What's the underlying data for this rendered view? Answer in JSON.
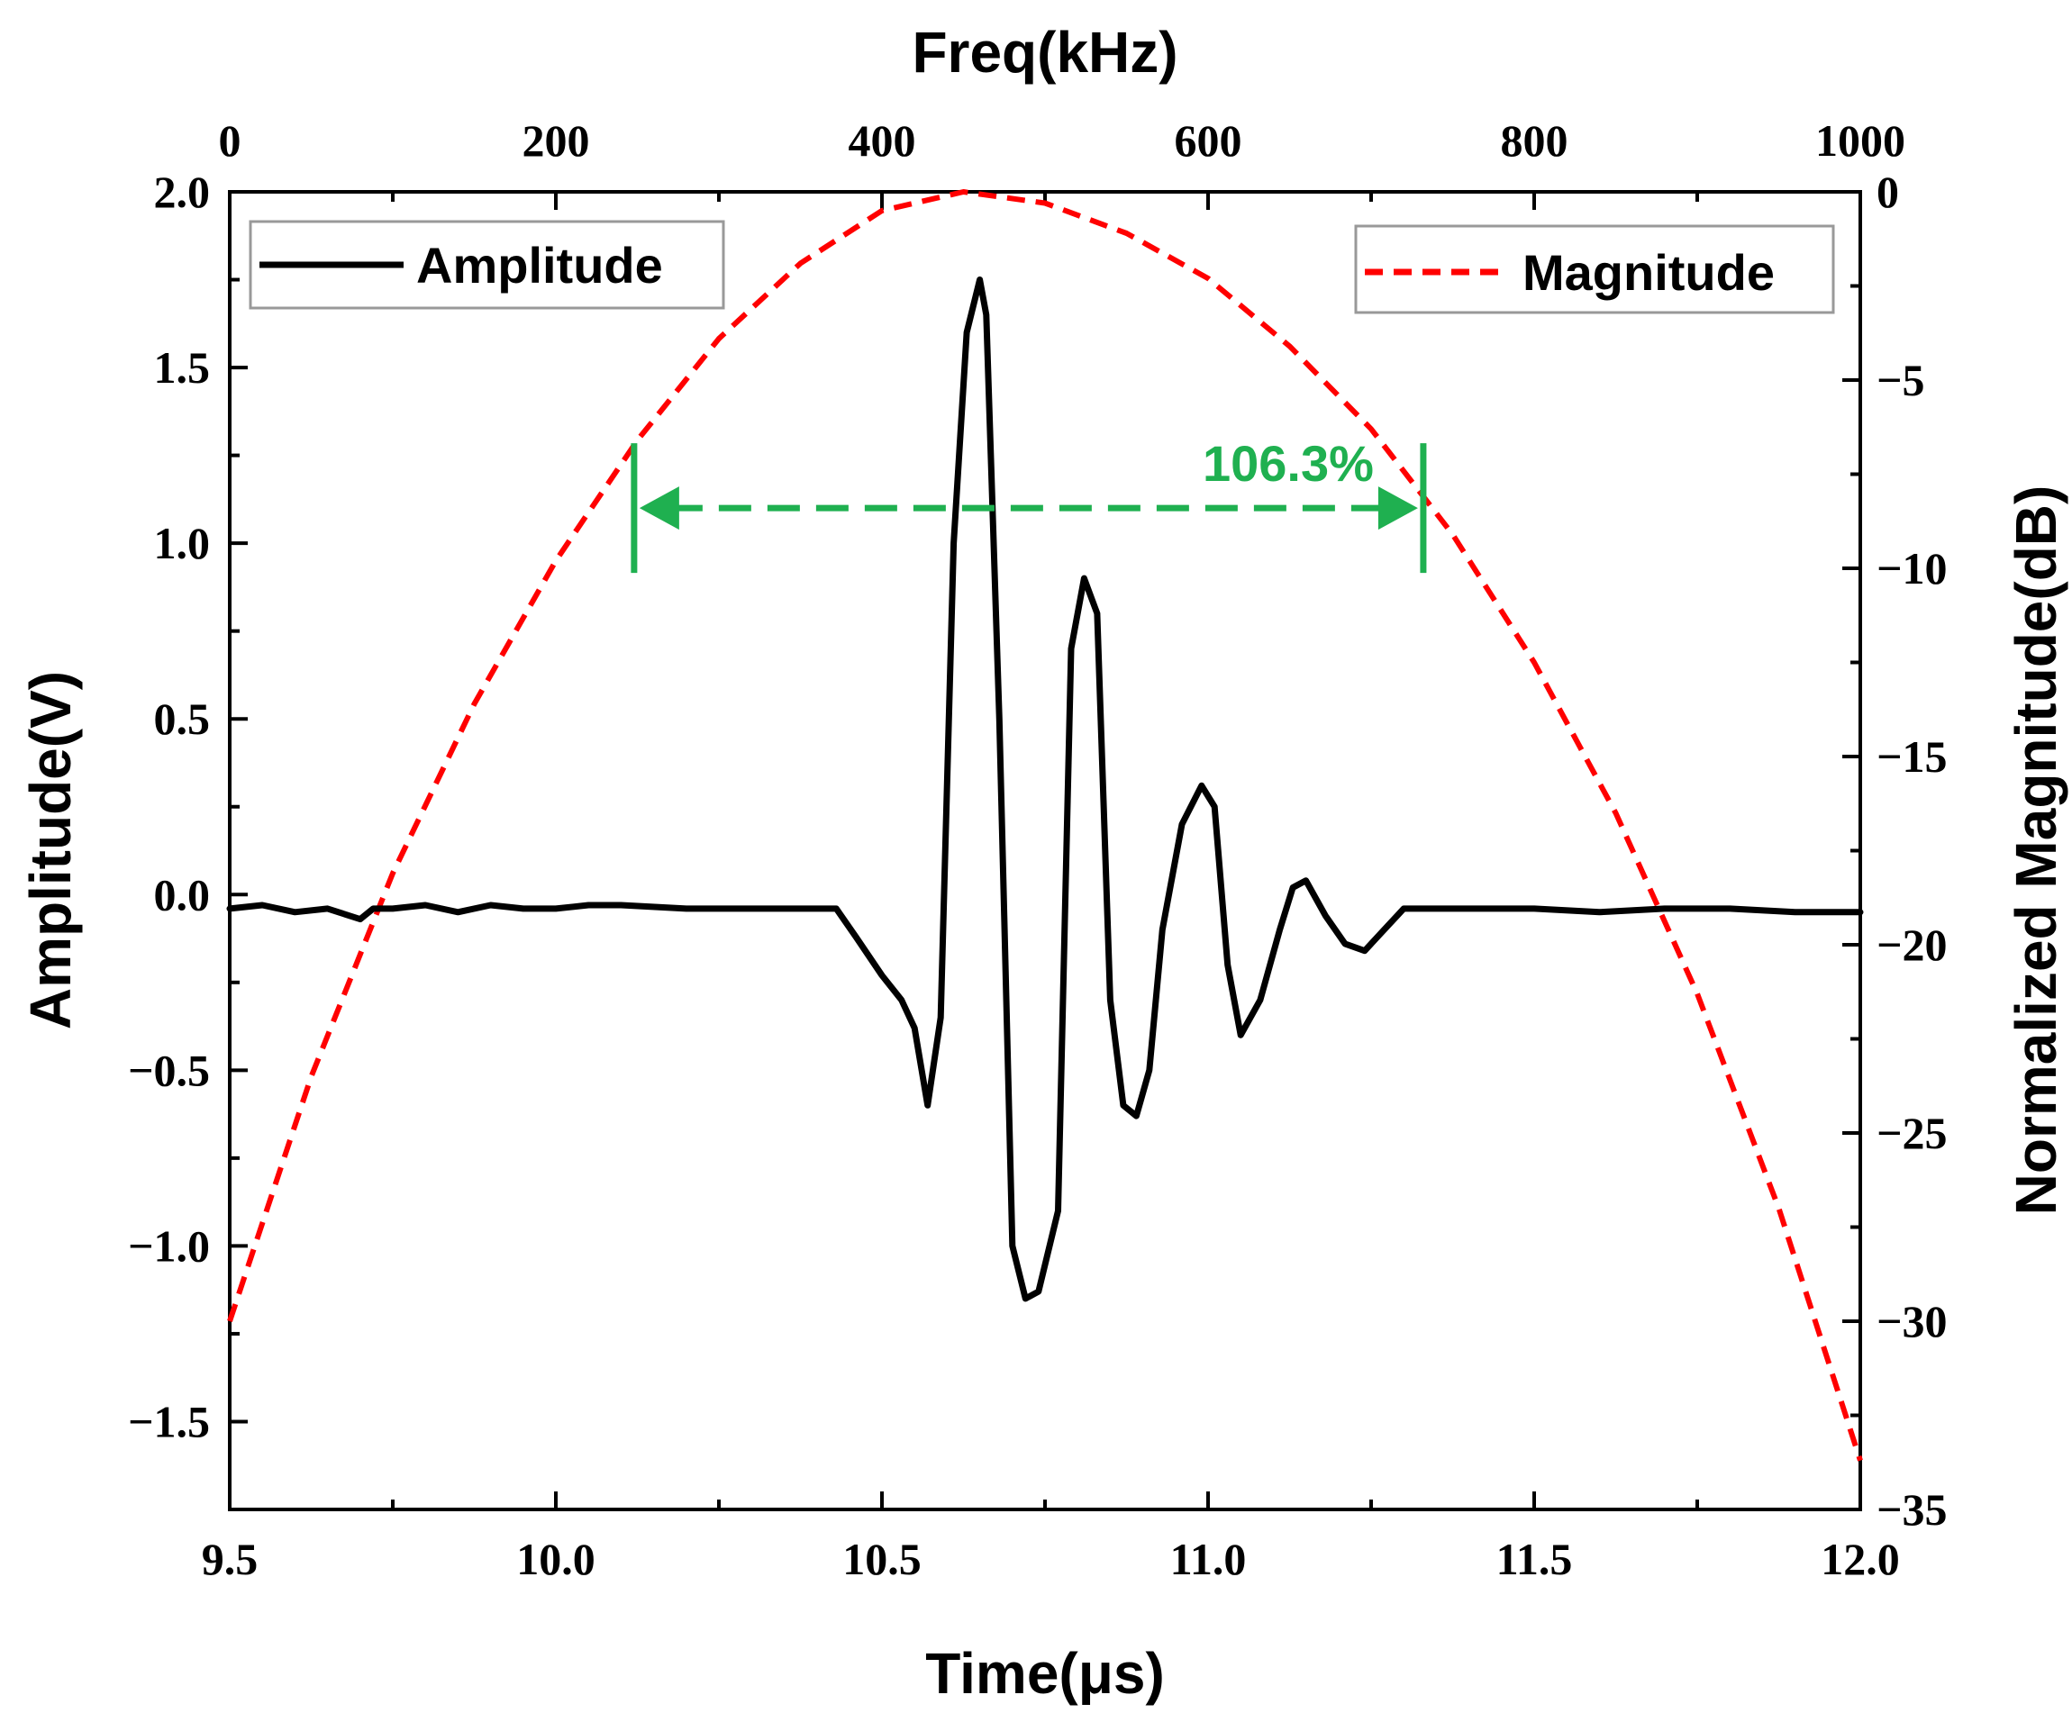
{
  "chart_data": {
    "type": "line",
    "x_axis": {
      "label": "Time(μs)",
      "range": [
        9.5,
        12.0
      ],
      "ticks": [
        "9.5",
        "10.0",
        "10.5",
        "11.0",
        "11.5",
        "12.0"
      ]
    },
    "x2_axis": {
      "label": "Freq(kHz)",
      "range": [
        0,
        1000
      ],
      "ticks": [
        "0",
        "200",
        "400",
        "600",
        "800",
        "1000"
      ]
    },
    "y_axis": {
      "label": "Amplitude(V)",
      "range": [
        -1.75,
        2.0
      ],
      "ticks": [
        "2.0",
        "1.5",
        "1.0",
        "0.5",
        "0.0",
        "−0.5",
        "−1.0",
        "−1.5"
      ]
    },
    "y2_axis": {
      "label": "Normalized Magnitude(dB)",
      "range": [
        -35,
        0
      ],
      "ticks": [
        "0",
        "−5",
        "−10",
        "−15",
        "−20",
        "−25",
        "−30",
        "−35"
      ]
    },
    "series": [
      {
        "name": "Amplitude",
        "axis": "time",
        "color": "#000000",
        "style": "solid",
        "x": [
          9.5,
          9.55,
          9.6,
          9.65,
          9.7,
          9.72,
          9.75,
          9.8,
          9.85,
          9.9,
          9.95,
          10.0,
          10.05,
          10.1,
          10.2,
          10.3,
          10.4,
          10.43,
          10.46,
          10.5,
          10.53,
          10.55,
          10.57,
          10.59,
          10.61,
          10.63,
          10.65,
          10.66,
          10.68,
          10.7,
          10.72,
          10.74,
          10.77,
          10.79,
          10.81,
          10.83,
          10.85,
          10.87,
          10.89,
          10.91,
          10.93,
          10.96,
          10.99,
          11.01,
          11.03,
          11.05,
          11.08,
          11.11,
          11.13,
          11.15,
          11.18,
          11.21,
          11.24,
          11.27,
          11.3,
          11.35,
          11.4,
          11.5,
          11.6,
          11.7,
          11.8,
          11.9,
          12.0
        ],
        "y": [
          -0.04,
          -0.03,
          -0.05,
          -0.04,
          -0.07,
          -0.04,
          -0.04,
          -0.03,
          -0.05,
          -0.03,
          -0.04,
          -0.04,
          -0.03,
          -0.03,
          -0.04,
          -0.04,
          -0.04,
          -0.04,
          -0.12,
          -0.23,
          -0.3,
          -0.38,
          -0.6,
          -0.35,
          1.0,
          1.6,
          1.75,
          1.65,
          0.5,
          -1.0,
          -1.15,
          -1.13,
          -0.9,
          0.7,
          0.9,
          0.8,
          -0.3,
          -0.6,
          -0.63,
          -0.5,
          -0.1,
          0.2,
          0.31,
          0.25,
          -0.2,
          -0.4,
          -0.3,
          -0.1,
          0.02,
          0.04,
          -0.06,
          -0.14,
          -0.16,
          -0.1,
          -0.04,
          -0.04,
          -0.04,
          -0.04,
          -0.05,
          -0.04,
          -0.04,
          -0.05,
          -0.05
        ]
      },
      {
        "name": "Magnitude",
        "axis": "freq",
        "color": "#ff0000",
        "style": "dashed",
        "x": [
          0,
          50,
          100,
          150,
          200,
          250,
          300,
          350,
          400,
          450,
          500,
          550,
          600,
          650,
          700,
          750,
          800,
          850,
          900,
          950,
          1000
        ],
        "y": [
          -30,
          -23.5,
          -18.1,
          -13.6,
          -9.8,
          -6.6,
          -3.9,
          -1.9,
          -0.5,
          0,
          -0.3,
          -1.1,
          -2.3,
          -4.1,
          -6.3,
          -9.1,
          -12.5,
          -16.5,
          -21.3,
          -27.0,
          -33.7
        ]
      }
    ],
    "legend": [
      {
        "label": "Amplitude",
        "position": "top-left"
      },
      {
        "label": "Magnitude",
        "position": "top-right"
      }
    ],
    "annotation": {
      "text": "106.3%",
      "color": "#1fb050",
      "x_start": 10.12,
      "x_end": 11.33,
      "y": 1.1
    }
  }
}
